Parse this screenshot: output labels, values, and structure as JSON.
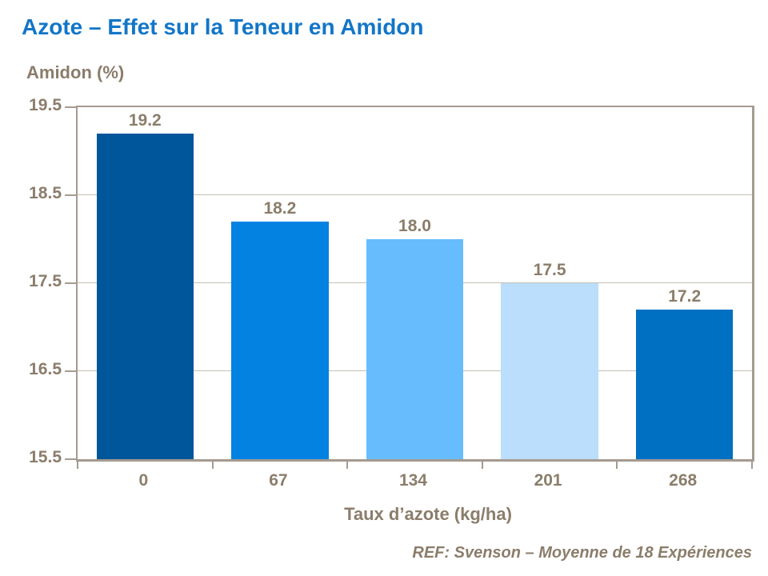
{
  "slide": {
    "title": "Azote – Effet sur la Teneur en Amidon",
    "y_axis_title": "Amidon (%)",
    "x_axis_title": "Taux d’azote (kg/ha)",
    "reference": "REF: Svenson – Moyenne de 18 Expériences"
  },
  "colors": {
    "title_text": "#1276C8",
    "axis_text": "#8B7D6B",
    "plot_border": "#A59B90",
    "gridline": "#C6BEB4",
    "background": "#FFFFFF",
    "bar_fills": [
      "#00569B",
      "#0482E2",
      "#67BCFD",
      "#BADEFC",
      "#0070C2"
    ]
  },
  "chart_data": {
    "type": "bar",
    "title": "Azote – Effet sur la Teneur en Amidon",
    "categories": [
      "0",
      "67",
      "134",
      "201",
      "268"
    ],
    "values": [
      19.2,
      18.2,
      18.0,
      17.5,
      17.2
    ],
    "value_labels": [
      "19.2",
      "18.2",
      "18.0",
      "17.5",
      "17.2"
    ],
    "xlabel": "Taux d’azote (kg/ha)",
    "ylabel": "Amidon (%)",
    "ylim": [
      15.5,
      19.5
    ],
    "yticks": [
      "19.5",
      "18.5",
      "17.5",
      "16.5",
      "15.5"
    ],
    "ytick_interval": 1.0,
    "grid": true,
    "legend_position": "none",
    "bar_colors": [
      "#00569B",
      "#0482E2",
      "#67BCFD",
      "#BADEFC",
      "#0070C2"
    ],
    "source_note": "REF: Svenson – Moyenne de 18 Expériences"
  }
}
